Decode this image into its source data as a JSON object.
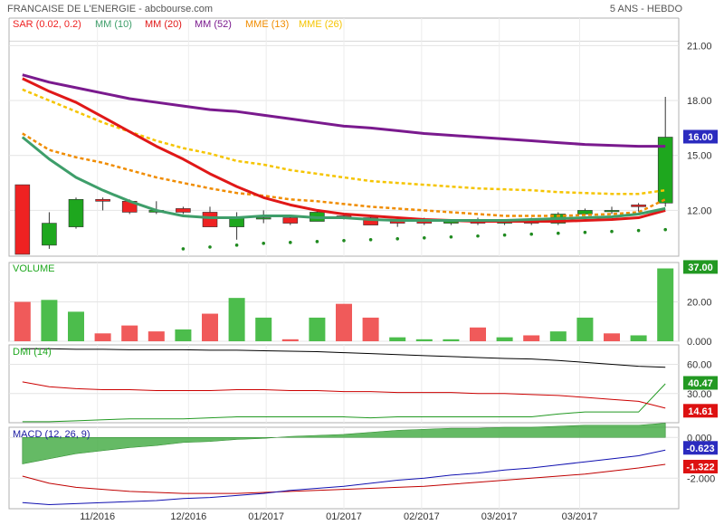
{
  "header": {
    "title": "FRANCAISE DE L'ENERGIE - abcbourse.com",
    "period": "5 ANS - HEBDO"
  },
  "colors": {
    "up": "#1ea71e",
    "down": "#ee2222",
    "sar": "#1f8a1f",
    "mm10": "#3e9e6a",
    "mm20": "#e01818",
    "mm52": "#7a1a8e",
    "mme13": "#f08c00",
    "mme26": "#f5c400",
    "macd": "#1010b0",
    "signal": "#c00000",
    "histogram": "#4aae4a",
    "adx": "#000000",
    "diplus": "#229922",
    "diminus": "#cc0000",
    "badge_blue": "#2b2bbf",
    "badge_red": "#dd1111",
    "badge_green": "#229922"
  },
  "chart_data": [
    {
      "type": "candlestick",
      "legend": [
        "SAR (0.02, 0.2)",
        "MM (10)",
        "MM (20)",
        "MM (52)",
        "MME (13)",
        "MME (26)"
      ],
      "x_labels": [
        "11/2016",
        "12/2016",
        "01/2017",
        "01/2017",
        "02/2017",
        "03/2017",
        "03/2017"
      ],
      "y_ticks": [
        "21.00",
        "18.00",
        "15.00",
        "12.00"
      ],
      "ylim": [
        9.5,
        22.5
      ],
      "last_value": "16.00",
      "candles": [
        {
          "o": 13.4,
          "h": 13.4,
          "l": 9.6,
          "c": 9.6
        },
        {
          "o": 10.1,
          "h": 11.9,
          "l": 9.9,
          "c": 11.3
        },
        {
          "o": 11.1,
          "h": 12.7,
          "l": 11.0,
          "c": 12.6
        },
        {
          "o": 12.6,
          "h": 12.7,
          "l": 12.0,
          "c": 12.5
        },
        {
          "o": 12.5,
          "h": 12.6,
          "l": 11.8,
          "c": 11.9
        },
        {
          "o": 11.9,
          "h": 12.5,
          "l": 11.8,
          "c": 12.0
        },
        {
          "o": 12.1,
          "h": 12.2,
          "l": 11.8,
          "c": 11.9
        },
        {
          "o": 11.9,
          "h": 12.2,
          "l": 11.1,
          "c": 11.1
        },
        {
          "o": 11.1,
          "h": 11.9,
          "l": 10.4,
          "c": 11.6
        },
        {
          "o": 11.6,
          "h": 12.0,
          "l": 11.3,
          "c": 11.6
        },
        {
          "o": 11.6,
          "h": 11.7,
          "l": 11.2,
          "c": 11.3
        },
        {
          "o": 11.4,
          "h": 12.0,
          "l": 11.4,
          "c": 11.9
        },
        {
          "o": 11.7,
          "h": 11.8,
          "l": 11.5,
          "c": 11.6
        },
        {
          "o": 11.6,
          "h": 11.7,
          "l": 11.2,
          "c": 11.2
        },
        {
          "o": 11.4,
          "h": 11.5,
          "l": 11.1,
          "c": 11.3
        },
        {
          "o": 11.5,
          "h": 11.6,
          "l": 11.2,
          "c": 11.3
        },
        {
          "o": 11.3,
          "h": 11.5,
          "l": 11.2,
          "c": 11.4
        },
        {
          "o": 11.5,
          "h": 11.6,
          "l": 11.2,
          "c": 11.3
        },
        {
          "o": 11.3,
          "h": 11.5,
          "l": 11.2,
          "c": 11.4
        },
        {
          "o": 11.5,
          "h": 11.6,
          "l": 11.2,
          "c": 11.3
        },
        {
          "o": 11.3,
          "h": 11.9,
          "l": 11.2,
          "c": 11.8
        },
        {
          "o": 11.8,
          "h": 12.1,
          "l": 11.7,
          "c": 12.0
        },
        {
          "o": 12.0,
          "h": 12.2,
          "l": 11.8,
          "c": 12.0
        },
        {
          "o": 12.3,
          "h": 12.4,
          "l": 11.9,
          "c": 12.2
        },
        {
          "o": 12.4,
          "h": 18.2,
          "l": 12.2,
          "c": 16.0
        }
      ],
      "sar": [
        9.4,
        9.45,
        9.5,
        9.6,
        9.7,
        9.8,
        9.9,
        10.0,
        10.1,
        10.2,
        10.25,
        10.3,
        10.35,
        10.4,
        10.45,
        10.5,
        10.55,
        10.6,
        10.65,
        10.7,
        10.75,
        10.8,
        10.85,
        10.9,
        10.95
      ],
      "mm10": [
        16.0,
        14.8,
        13.8,
        13.1,
        12.5,
        12.0,
        11.7,
        11.6,
        11.6,
        11.7,
        11.7,
        11.6,
        11.6,
        11.5,
        11.45,
        11.45,
        11.45,
        11.45,
        11.45,
        11.5,
        11.55,
        11.6,
        11.65,
        11.8,
        12.1
      ],
      "mm20": [
        19.2,
        18.5,
        17.9,
        17.1,
        16.3,
        15.5,
        14.8,
        14.0,
        13.3,
        12.7,
        12.3,
        12.0,
        11.8,
        11.7,
        11.6,
        11.5,
        11.45,
        11.4,
        11.4,
        11.4,
        11.4,
        11.45,
        11.5,
        11.6,
        12.0
      ],
      "mm52": [
        19.4,
        19.0,
        18.7,
        18.4,
        18.1,
        17.9,
        17.7,
        17.5,
        17.4,
        17.2,
        17.0,
        16.8,
        16.6,
        16.5,
        16.35,
        16.2,
        16.1,
        16.0,
        15.9,
        15.8,
        15.7,
        15.6,
        15.55,
        15.5,
        15.5
      ],
      "mme13": [
        16.2,
        15.3,
        14.9,
        14.6,
        14.2,
        13.8,
        13.5,
        13.2,
        12.95,
        12.8,
        12.6,
        12.5,
        12.35,
        12.2,
        12.1,
        12.0,
        11.9,
        11.8,
        11.7,
        11.7,
        11.7,
        11.75,
        11.8,
        11.9,
        12.6
      ],
      "mme26": [
        18.6,
        18.0,
        17.4,
        16.8,
        16.3,
        15.8,
        15.4,
        15.1,
        14.7,
        14.5,
        14.2,
        14.0,
        13.8,
        13.6,
        13.5,
        13.4,
        13.3,
        13.2,
        13.15,
        13.1,
        13.0,
        12.95,
        12.9,
        12.9,
        13.1
      ]
    },
    {
      "type": "bar",
      "title": "VOLUME",
      "y_ticks": [
        "20.00",
        "0.000"
      ],
      "ylim": [
        0,
        40
      ],
      "last_value": "37.00",
      "values": [
        20,
        21,
        15,
        4,
        8,
        5,
        6,
        14,
        22,
        12,
        1,
        12,
        19,
        12,
        2,
        1,
        1,
        7,
        2,
        3,
        5,
        12,
        4,
        3,
        37
      ],
      "up": [
        false,
        true,
        true,
        false,
        false,
        false,
        true,
        false,
        true,
        true,
        false,
        true,
        false,
        false,
        true,
        true,
        true,
        false,
        true,
        false,
        true,
        true,
        false,
        true,
        true
      ]
    },
    {
      "type": "line",
      "title": "DMI (14)",
      "y_ticks": [
        "60.00",
        "30.00"
      ],
      "ylim": [
        0,
        80
      ],
      "last_values": {
        "diplus": "40.47",
        "diminus": "14.61"
      },
      "series": [
        {
          "name": "adx",
          "values": [
            76,
            76,
            75.5,
            75.5,
            75,
            75,
            75,
            74.5,
            74.5,
            74,
            73.5,
            73,
            72,
            71,
            70,
            69,
            68,
            67,
            66,
            65.5,
            64,
            62,
            60,
            58,
            57
          ]
        },
        {
          "name": "diplus",
          "values": [
            1,
            1,
            2,
            3,
            4,
            4,
            4,
            5,
            6,
            6,
            6,
            6,
            6,
            5,
            6,
            6,
            6,
            6,
            6,
            6,
            9,
            11,
            11,
            11,
            40
          ]
        },
        {
          "name": "diminus",
          "values": [
            42,
            37,
            35,
            34,
            34,
            33,
            33,
            33,
            34,
            34,
            33,
            33,
            32,
            32,
            31,
            31,
            31,
            30,
            30,
            29,
            28,
            26,
            24,
            22,
            15
          ]
        }
      ]
    },
    {
      "type": "line",
      "title": "MACD (12, 26, 9)",
      "y_ticks": [
        "0.000",
        "-2.000"
      ],
      "ylim": [
        -3.5,
        0.5
      ],
      "last_values": {
        "macd": "-0.623",
        "signal": "-1.322"
      },
      "series": [
        {
          "name": "macd",
          "values": [
            -3.2,
            -3.3,
            -3.25,
            -3.2,
            -3.15,
            -3.1,
            -3.0,
            -2.95,
            -2.85,
            -2.75,
            -2.6,
            -2.5,
            -2.4,
            -2.25,
            -2.1,
            -2.0,
            -1.85,
            -1.75,
            -1.6,
            -1.5,
            -1.35,
            -1.2,
            -1.05,
            -0.9,
            -0.62
          ]
        },
        {
          "name": "signal",
          "values": [
            -1.9,
            -2.25,
            -2.45,
            -2.55,
            -2.65,
            -2.7,
            -2.75,
            -2.75,
            -2.75,
            -2.7,
            -2.65,
            -2.6,
            -2.55,
            -2.5,
            -2.45,
            -2.4,
            -2.3,
            -2.2,
            -2.1,
            -2.0,
            -1.9,
            -1.8,
            -1.65,
            -1.5,
            -1.32
          ]
        },
        {
          "name": "histogram",
          "values": [
            -1.3,
            -1.05,
            -0.8,
            -0.65,
            -0.5,
            -0.4,
            -0.25,
            -0.2,
            -0.1,
            -0.05,
            0.05,
            0.1,
            0.15,
            0.25,
            0.35,
            0.4,
            0.45,
            0.45,
            0.5,
            0.5,
            0.55,
            0.6,
            0.6,
            0.6,
            0.7
          ]
        }
      ]
    }
  ]
}
